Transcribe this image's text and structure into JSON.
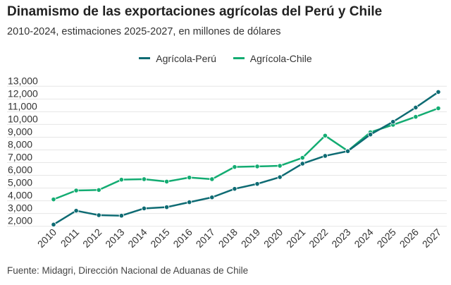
{
  "chart_data": {
    "type": "line",
    "title": "Dinamismo de las exportaciones agrícolas del Perú y Chile",
    "subtitle": "2010-2024, estimaciones 2025-2027, en millones de dólares",
    "source": "Fuente: Midagri, Dirección Nacional de Aduanas de Chile",
    "xlabel": "",
    "ylabel": "",
    "ylim": [
      2000,
      13000
    ],
    "yticks": [
      "13,000",
      "12,000",
      "11,000",
      "10,000",
      "9,000",
      "8,000",
      "7,000",
      "6,000",
      "5,000",
      "4,000",
      "3,000",
      "2,000"
    ],
    "grid": true,
    "legend_position": "top-center",
    "x": [
      "2010",
      "2011",
      "2012",
      "2013",
      "2014",
      "2015",
      "2016",
      "2017",
      "2018",
      "2019",
      "2020",
      "2021",
      "2022",
      "2023",
      "2024",
      "2025",
      "2026",
      "2027"
    ],
    "series": [
      {
        "name": "Agrícola-Perú",
        "color": "#0e6b73",
        "values": [
          2130,
          3220,
          2870,
          2830,
          3400,
          3500,
          3890,
          4270,
          4940,
          5330,
          5860,
          6920,
          7530,
          7900,
          9210,
          10210,
          11330,
          12550
        ]
      },
      {
        "name": "Agrícola-Chile",
        "color": "#13ac72",
        "values": [
          4110,
          4810,
          4850,
          5660,
          5700,
          5510,
          5830,
          5700,
          6660,
          6700,
          6750,
          7380,
          9120,
          7920,
          9390,
          9970,
          10600,
          11270
        ]
      }
    ]
  }
}
